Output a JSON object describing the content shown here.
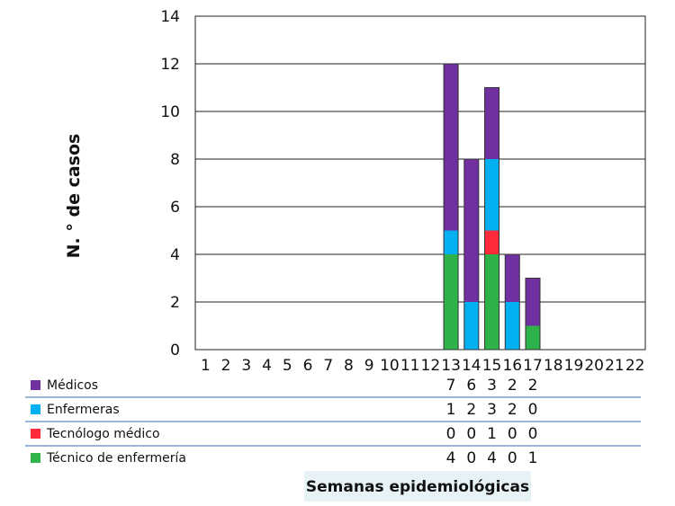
{
  "chart_data": {
    "type": "bar",
    "stacked": true,
    "title": "",
    "ylabel": "N. ° de casos",
    "xlabel": "Semanas epidemiológicas",
    "ylim": [
      0,
      14
    ],
    "yticks": [
      0,
      2,
      4,
      6,
      8,
      10,
      12,
      14
    ],
    "grid": true,
    "categories": [
      "1",
      "2",
      "3",
      "4",
      "5",
      "6",
      "7",
      "8",
      "9",
      "10",
      "11",
      "12",
      "13",
      "14",
      "15",
      "16",
      "17",
      "18",
      "19",
      "20",
      "21",
      "22"
    ],
    "series": [
      {
        "name": "Médicos",
        "color": "#7030a0",
        "values": [
          0,
          0,
          0,
          0,
          0,
          0,
          0,
          0,
          0,
          0,
          0,
          0,
          7,
          6,
          3,
          2,
          2,
          0,
          0,
          0,
          0,
          0
        ]
      },
      {
        "name": "Enfermeras",
        "color": "#00b0f0",
        "values": [
          0,
          0,
          0,
          0,
          0,
          0,
          0,
          0,
          0,
          0,
          0,
          0,
          1,
          2,
          3,
          2,
          0,
          0,
          0,
          0,
          0,
          0
        ]
      },
      {
        "name": "Tecnólogo médico",
        "color": "#ff2a3a",
        "values": [
          0,
          0,
          0,
          0,
          0,
          0,
          0,
          0,
          0,
          0,
          0,
          0,
          0,
          0,
          1,
          0,
          0,
          0,
          0,
          0,
          0,
          0
        ]
      },
      {
        "name": "Técnico de enfermería",
        "color": "#2eb34a",
        "values": [
          0,
          0,
          0,
          0,
          0,
          0,
          0,
          0,
          0,
          0,
          0,
          0,
          4,
          0,
          4,
          0,
          1,
          0,
          0,
          0,
          0,
          0
        ]
      }
    ],
    "stack_order_bottom_to_top": [
      "Técnico de enfermería",
      "Tecnólogo médico",
      "Enfermeras",
      "Médicos"
    ],
    "data_table_weeks": [
      "13",
      "14",
      "15",
      "16",
      "17"
    ],
    "legend_position": "data table below chart"
  }
}
